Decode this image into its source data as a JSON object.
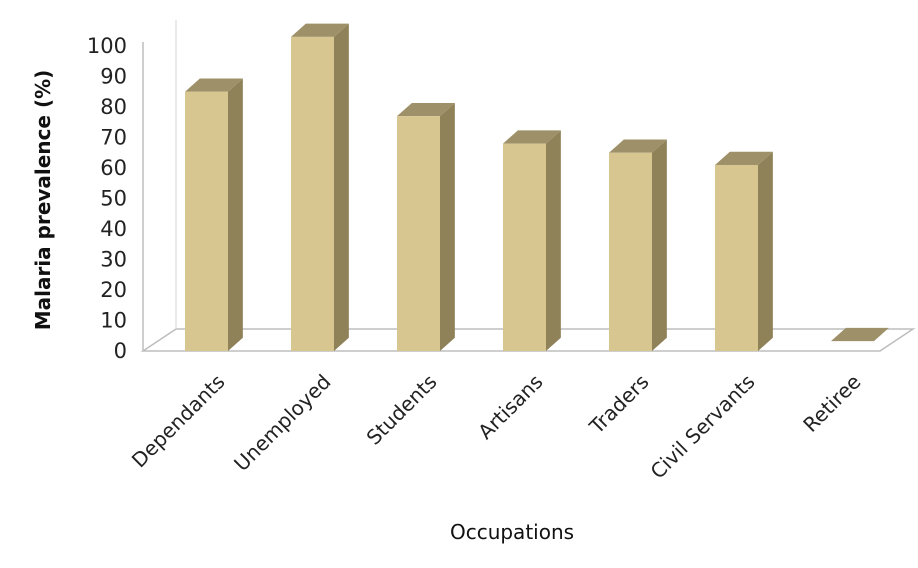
{
  "chart_data": {
    "type": "bar",
    "title": "",
    "xlabel": "Occupations",
    "ylabel": "Malaria prevalence (%)",
    "ylim": [
      0,
      100
    ],
    "y_ticks": [
      "0",
      "10",
      "20",
      "30",
      "40",
      "50",
      "60",
      "70",
      "80",
      "90",
      "100"
    ],
    "categories": [
      "Dependants",
      "Unemployed",
      "Students",
      "Artisans",
      "Traders",
      "Civil Servants",
      "Retiree"
    ],
    "values": [
      85,
      103,
      77,
      68,
      65,
      61,
      0
    ],
    "grid": false,
    "legend": "none",
    "style": "3d-column",
    "colors": {
      "bar_front": "#d8c690",
      "bar_side": "#8f8259",
      "bar_top": "#9e9068",
      "floor": "#ffffff",
      "floor_edge": "#bdbdbd"
    }
  }
}
